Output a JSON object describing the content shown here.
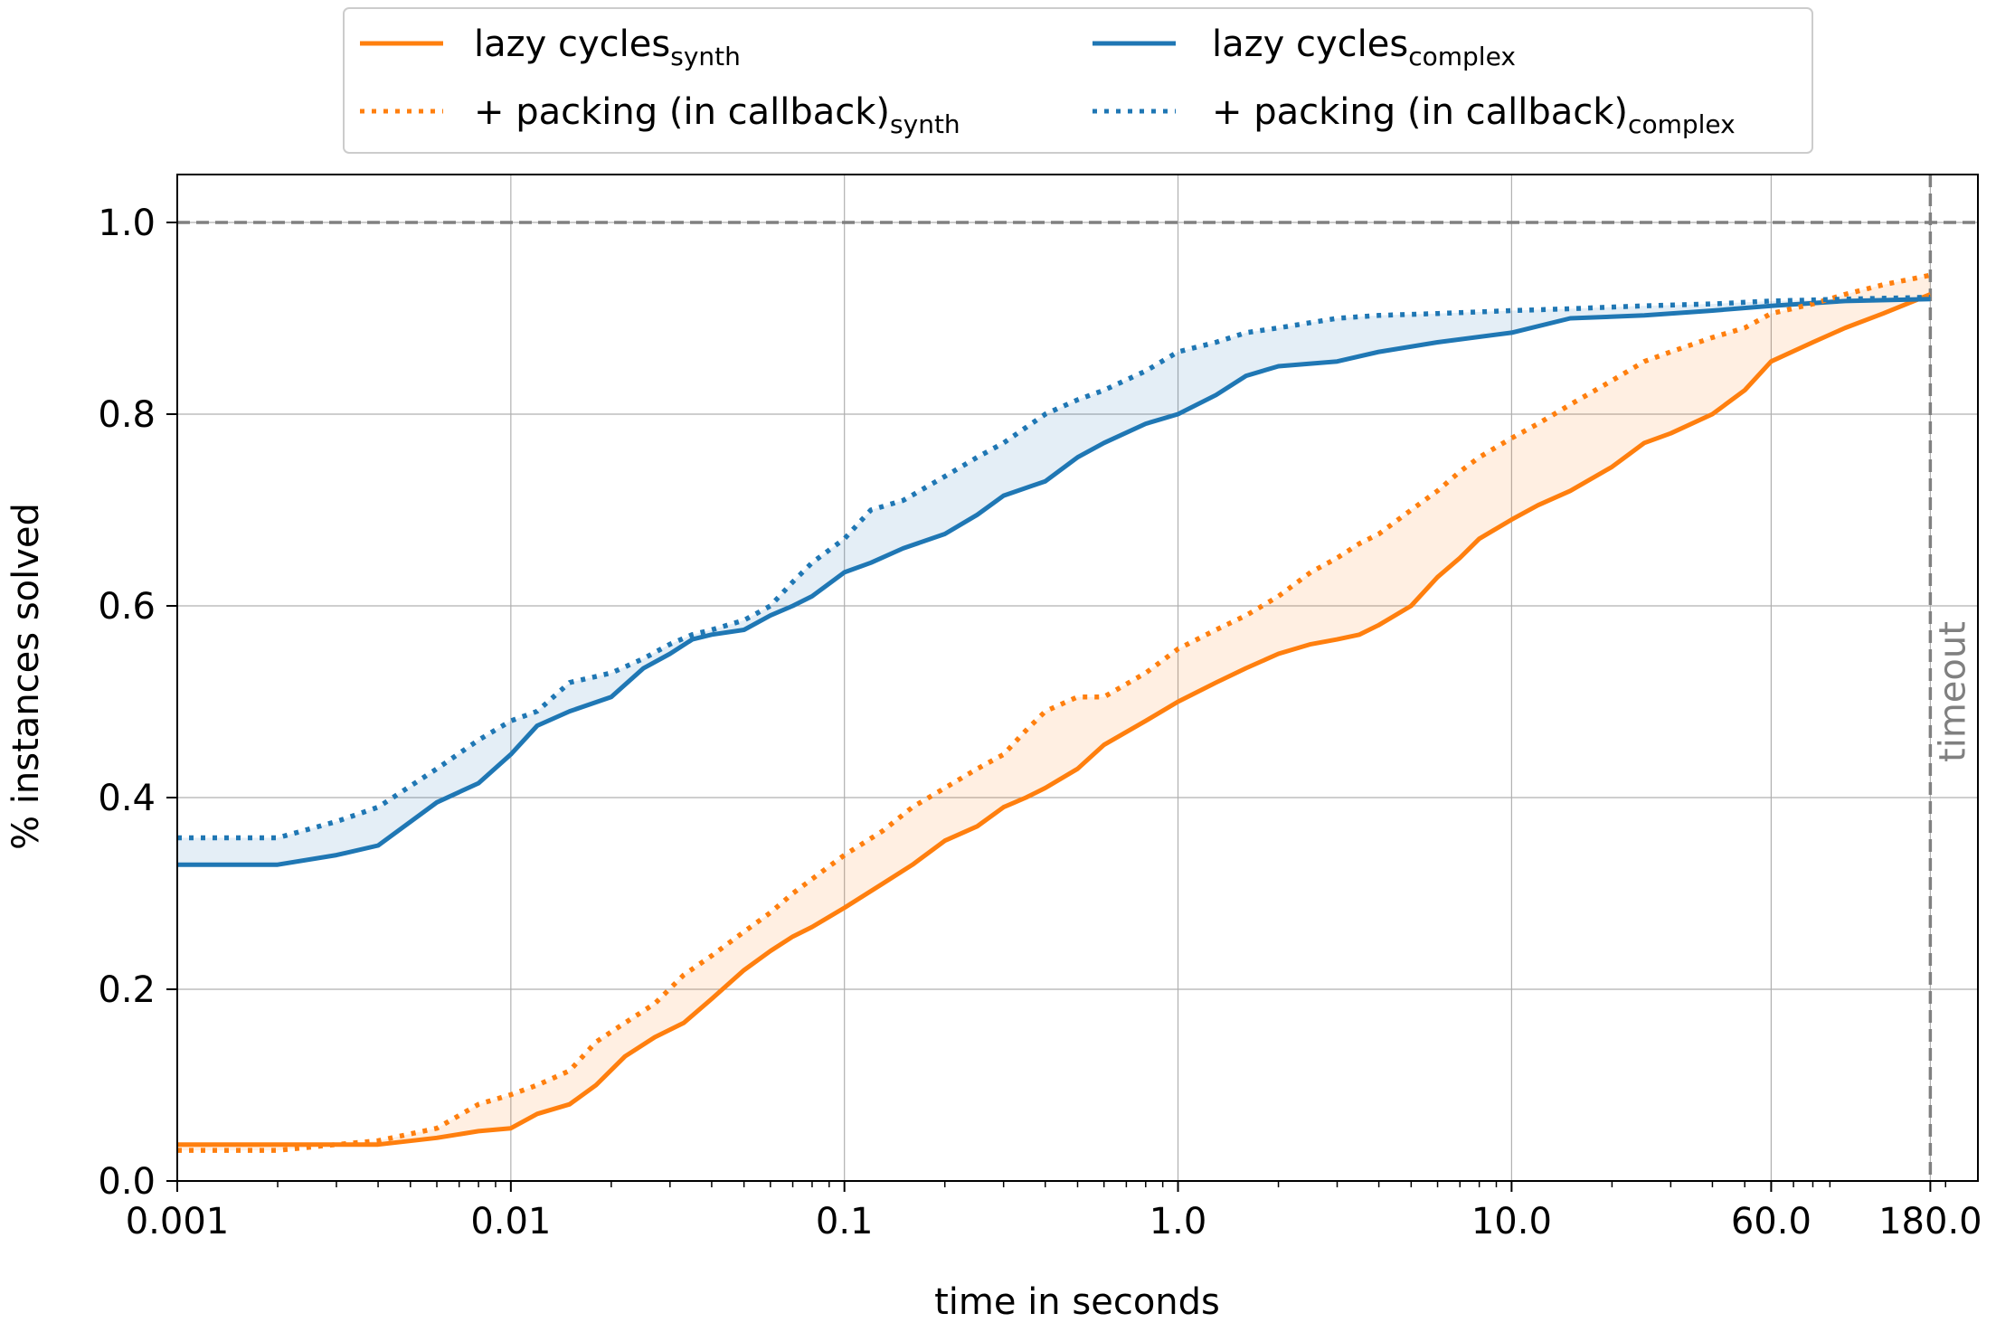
{
  "chart_data": {
    "type": "line",
    "title": "",
    "xlabel": "time in seconds",
    "ylabel": "% instances solved",
    "x_scale": "log",
    "xlim": [
      0.001,
      250
    ],
    "ylim": [
      0.0,
      1.05
    ],
    "grid": true,
    "legend_position": "top-center",
    "x_ticks": [
      {
        "value": 0.001,
        "label": "0.001"
      },
      {
        "value": 0.01,
        "label": "0.01"
      },
      {
        "value": 0.1,
        "label": "0.1"
      },
      {
        "value": 1.0,
        "label": "1.0"
      },
      {
        "value": 10.0,
        "label": "10.0"
      },
      {
        "value": 60.0,
        "label": "60.0"
      },
      {
        "value": 180.0,
        "label": "180.0"
      }
    ],
    "y_ticks": [
      {
        "value": 0.0,
        "label": "0.0"
      },
      {
        "value": 0.2,
        "label": "0.2"
      },
      {
        "value": 0.4,
        "label": "0.4"
      },
      {
        "value": 0.6,
        "label": "0.6"
      },
      {
        "value": 0.8,
        "label": "0.8"
      },
      {
        "value": 1.0,
        "label": "1.0"
      }
    ],
    "reference_lines": [
      {
        "orientation": "horizontal",
        "value": 1.0,
        "color": "#808080",
        "style": "dashed",
        "label": ""
      },
      {
        "orientation": "vertical",
        "value": 180.0,
        "color": "#808080",
        "style": "dashed",
        "label": "timeout"
      }
    ],
    "series": [
      {
        "name": "lazy cycles",
        "name_subscript": "synth",
        "color": "#ff7f0e",
        "style": "solid",
        "x": [
          0.001,
          0.002,
          0.003,
          0.004,
          0.006,
          0.008,
          0.01,
          0.012,
          0.015,
          0.018,
          0.022,
          0.027,
          0.033,
          0.04,
          0.05,
          0.06,
          0.07,
          0.08,
          0.1,
          0.13,
          0.16,
          0.2,
          0.25,
          0.3,
          0.35,
          0.4,
          0.5,
          0.6,
          0.8,
          1.0,
          1.3,
          1.6,
          2.0,
          2.5,
          3.0,
          3.5,
          4.0,
          5.0,
          6.0,
          7.0,
          8.0,
          10.0,
          12.0,
          15.0,
          20.0,
          25.0,
          30.0,
          40.0,
          50.0,
          60.0,
          80.0,
          100.0,
          130.0,
          180.0
        ],
        "values": [
          0.038,
          0.038,
          0.038,
          0.038,
          0.045,
          0.052,
          0.055,
          0.07,
          0.08,
          0.1,
          0.13,
          0.15,
          0.165,
          0.19,
          0.22,
          0.24,
          0.255,
          0.265,
          0.285,
          0.31,
          0.33,
          0.355,
          0.37,
          0.39,
          0.4,
          0.41,
          0.43,
          0.455,
          0.48,
          0.5,
          0.52,
          0.535,
          0.55,
          0.56,
          0.565,
          0.57,
          0.58,
          0.6,
          0.63,
          0.65,
          0.67,
          0.69,
          0.705,
          0.72,
          0.745,
          0.77,
          0.78,
          0.8,
          0.825,
          0.855,
          0.875,
          0.89,
          0.905,
          0.925
        ]
      },
      {
        "name": "lazy cycles",
        "name_subscript": "complex",
        "color": "#1f77b4",
        "style": "solid",
        "x": [
          0.001,
          0.002,
          0.003,
          0.004,
          0.006,
          0.008,
          0.01,
          0.012,
          0.015,
          0.02,
          0.025,
          0.03,
          0.035,
          0.04,
          0.05,
          0.06,
          0.07,
          0.08,
          0.1,
          0.12,
          0.15,
          0.2,
          0.25,
          0.3,
          0.4,
          0.5,
          0.6,
          0.8,
          1.0,
          1.3,
          1.6,
          2.0,
          3.0,
          4.0,
          6.0,
          10.0,
          15.0,
          25.0,
          40.0,
          60.0,
          100.0,
          180.0
        ],
        "values": [
          0.33,
          0.33,
          0.34,
          0.35,
          0.395,
          0.415,
          0.445,
          0.475,
          0.49,
          0.505,
          0.535,
          0.55,
          0.565,
          0.57,
          0.575,
          0.59,
          0.6,
          0.61,
          0.635,
          0.645,
          0.66,
          0.675,
          0.695,
          0.715,
          0.73,
          0.755,
          0.77,
          0.79,
          0.8,
          0.82,
          0.84,
          0.85,
          0.855,
          0.865,
          0.875,
          0.885,
          0.9,
          0.903,
          0.908,
          0.913,
          0.918,
          0.92
        ]
      },
      {
        "name": "+ packing (in callback)",
        "name_subscript": "synth",
        "color": "#ff7f0e",
        "style": "dotted",
        "x": [
          0.001,
          0.002,
          0.003,
          0.004,
          0.006,
          0.008,
          0.01,
          0.012,
          0.015,
          0.018,
          0.022,
          0.027,
          0.033,
          0.04,
          0.05,
          0.06,
          0.07,
          0.08,
          0.1,
          0.13,
          0.16,
          0.2,
          0.25,
          0.3,
          0.35,
          0.4,
          0.5,
          0.6,
          0.8,
          1.0,
          1.3,
          1.6,
          2.0,
          2.5,
          3.0,
          3.5,
          4.0,
          5.0,
          6.0,
          7.0,
          8.0,
          10.0,
          12.0,
          15.0,
          20.0,
          25.0,
          30.0,
          40.0,
          50.0,
          60.0,
          80.0,
          100.0,
          130.0,
          180.0
        ],
        "values": [
          0.032,
          0.032,
          0.038,
          0.042,
          0.055,
          0.08,
          0.09,
          0.1,
          0.115,
          0.145,
          0.165,
          0.185,
          0.215,
          0.235,
          0.26,
          0.28,
          0.3,
          0.315,
          0.34,
          0.365,
          0.39,
          0.41,
          0.43,
          0.445,
          0.47,
          0.49,
          0.505,
          0.505,
          0.53,
          0.555,
          0.575,
          0.59,
          0.61,
          0.635,
          0.65,
          0.665,
          0.675,
          0.7,
          0.72,
          0.74,
          0.755,
          0.775,
          0.79,
          0.81,
          0.835,
          0.855,
          0.865,
          0.88,
          0.89,
          0.905,
          0.915,
          0.925,
          0.935,
          0.945
        ]
      },
      {
        "name": "+ packing (in callback)",
        "name_subscript": "complex",
        "color": "#1f77b4",
        "style": "dotted",
        "x": [
          0.001,
          0.002,
          0.003,
          0.004,
          0.006,
          0.008,
          0.01,
          0.012,
          0.015,
          0.02,
          0.025,
          0.03,
          0.035,
          0.04,
          0.05,
          0.06,
          0.07,
          0.08,
          0.1,
          0.12,
          0.15,
          0.2,
          0.25,
          0.3,
          0.4,
          0.5,
          0.6,
          0.8,
          1.0,
          1.3,
          1.6,
          2.0,
          3.0,
          4.0,
          6.0,
          10.0,
          15.0,
          25.0,
          40.0,
          60.0,
          100.0,
          180.0
        ],
        "values": [
          0.358,
          0.358,
          0.375,
          0.39,
          0.43,
          0.46,
          0.48,
          0.49,
          0.52,
          0.53,
          0.545,
          0.56,
          0.57,
          0.575,
          0.585,
          0.6,
          0.625,
          0.645,
          0.67,
          0.7,
          0.71,
          0.735,
          0.755,
          0.77,
          0.8,
          0.815,
          0.825,
          0.845,
          0.865,
          0.875,
          0.885,
          0.89,
          0.9,
          0.903,
          0.905,
          0.908,
          0.91,
          0.913,
          0.915,
          0.918,
          0.92,
          0.922
        ]
      }
    ]
  }
}
